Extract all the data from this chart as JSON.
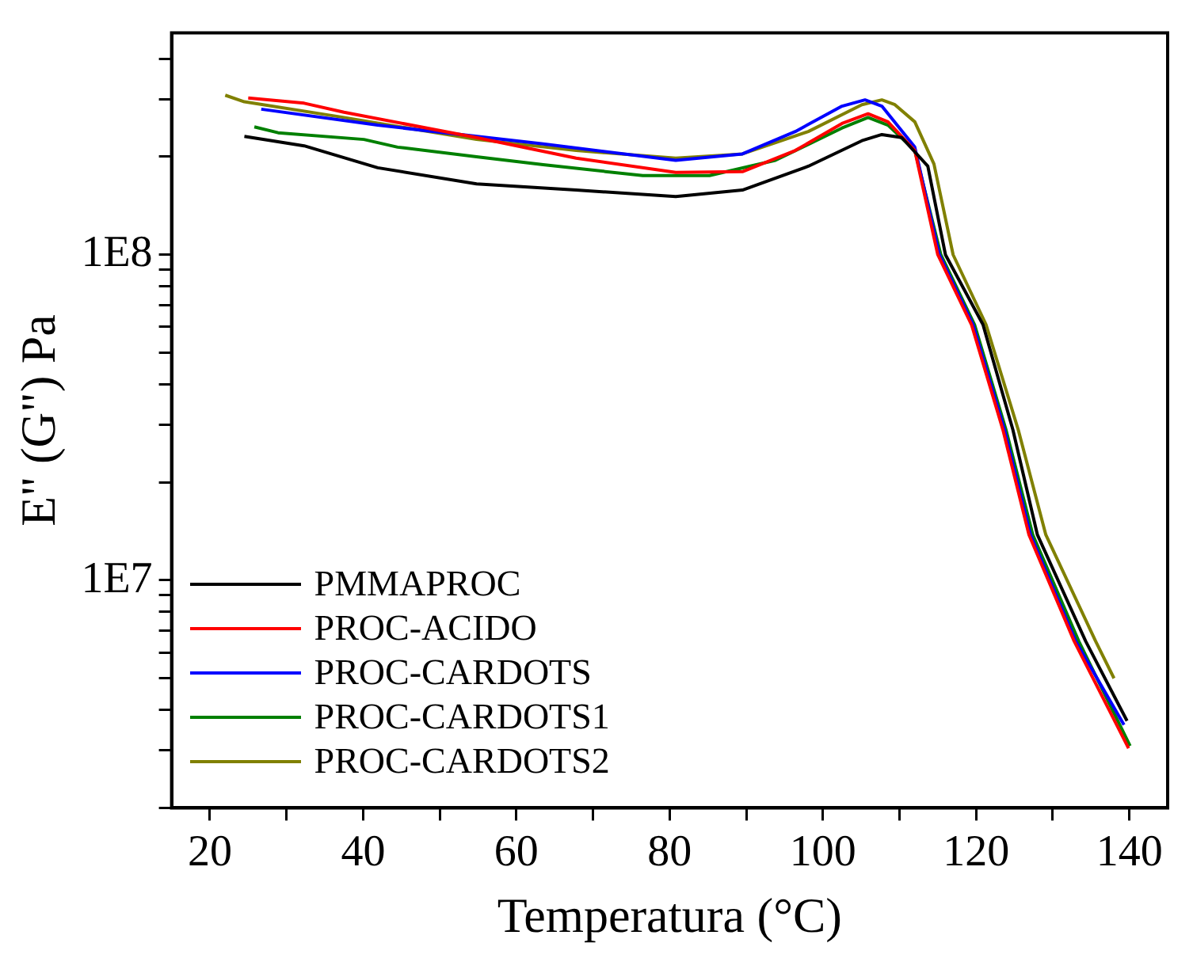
{
  "chart_data": {
    "type": "line",
    "xlabel": "Temperatura (°C)",
    "ylabel": "E\" (G\") Pa",
    "log": "y",
    "grid": false,
    "legend": "bottom left",
    "line_style": "solid",
    "marker": "none",
    "xlim": [
      15,
      145
    ],
    "xticks": [
      20,
      {
        "value": 30,
        "label": null
      },
      40,
      {
        "value": 50,
        "label": null
      },
      60,
      {
        "value": 70,
        "label": null
      },
      80,
      {
        "value": 90,
        "label": null
      },
      100,
      {
        "value": 110,
        "label": null
      },
      120,
      {
        "value": 130,
        "label": null
      },
      140
    ],
    "ylim": [
      2000000,
      480000000
    ],
    "yticks": [
      {
        "value": 2000000,
        "label": null
      },
      {
        "value": 3000000,
        "label": null
      },
      {
        "value": 4000000,
        "label": null
      },
      {
        "value": 5000000,
        "label": null
      },
      {
        "value": 6000000,
        "label": null
      },
      {
        "value": 7000000,
        "label": null
      },
      {
        "value": 8000000,
        "label": null
      },
      {
        "value": 9000000,
        "label": null
      },
      {
        "value": 10000000,
        "label": "1E7"
      },
      {
        "value": 20000000,
        "label": null
      },
      {
        "value": 30000000,
        "label": null
      },
      {
        "value": 40000000,
        "label": null
      },
      {
        "value": 50000000,
        "label": null
      },
      {
        "value": 60000000,
        "label": null
      },
      {
        "value": 70000000,
        "label": null
      },
      {
        "value": 80000000,
        "label": null
      },
      {
        "value": 90000000,
        "label": null
      },
      {
        "value": 100000000,
        "label": "1E8"
      },
      {
        "value": 200000000,
        "label": null
      },
      {
        "value": 300000000,
        "label": null
      },
      {
        "value": 400000000,
        "label": null
      }
    ],
    "series": [
      {
        "name": "PMMAPROC",
        "color": "#000000",
        "x": [
          24.5,
          32.3,
          41.9,
          54.8,
          67.8,
          80.8,
          89.5,
          98.1,
          105.1,
          107.7,
          110.3,
          113.7,
          116,
          120.9,
          124.8,
          128,
          134.3,
          139.7
        ],
        "values": [
          231000000,
          216000000,
          185000000,
          165000000,
          158000000,
          151000000,
          158000000,
          187000000,
          224000000,
          234000000,
          229000000,
          187000000,
          100000000,
          61000000,
          29000000,
          13800000,
          6500000,
          3700000
        ]
      },
      {
        "name": "PROC-ACIDO",
        "color": "#ff0000",
        "x": [
          25,
          32.3,
          37.5,
          54.8,
          67.8,
          80.8,
          89.5,
          96.4,
          102.5,
          105.9,
          108.5,
          112,
          115,
          119.4,
          123.5,
          126.9,
          132.8,
          139.9
        ],
        "values": [
          303000000,
          292000000,
          274000000,
          229000000,
          198000000,
          179000000,
          180000000,
          209000000,
          253000000,
          271000000,
          256000000,
          209000000,
          100000000,
          61000000,
          29000000,
          13800000,
          6500000,
          3050000
        ]
      },
      {
        "name": "PROC-CARDOTS",
        "color": "#0000ff",
        "x": [
          26.7,
          41.9,
          63.5,
          80.8,
          89.5,
          96.4,
          102.5,
          105.5,
          107.7,
          112,
          115.2,
          119.6,
          123.7,
          127.1,
          133,
          139.3
        ],
        "values": [
          280000000,
          250000000,
          219000000,
          195000000,
          204000000,
          239000000,
          286000000,
          299000000,
          286000000,
          214000000,
          100000000,
          61000000,
          29000000,
          13800000,
          6500000,
          3600000
        ]
      },
      {
        "name": "PROC-CARDOTS1",
        "color": "#008000",
        "x": [
          25.8,
          28.9,
          40.1,
          44.5,
          54.8,
          63.5,
          76.5,
          85.2,
          93.8,
          102.5,
          105.9,
          108.5,
          112,
          115.4,
          119.8,
          123.9,
          127.4,
          133.4,
          140.1
        ],
        "values": [
          247000000,
          237000000,
          226000000,
          214000000,
          200000000,
          189000000,
          175000000,
          175000000,
          195000000,
          245000000,
          264000000,
          250000000,
          209000000,
          100000000,
          61000000,
          29000000,
          13800000,
          6500000,
          3100000
        ]
      },
      {
        "name": "PROC-CARDOTS2",
        "color": "#808000",
        "x": [
          22,
          24.5,
          37.5,
          54.8,
          67.8,
          80.8,
          89.5,
          98.1,
          105.1,
          107.7,
          109.4,
          112,
          114.5,
          117,
          121.3,
          125.5,
          129.1,
          135.6,
          138
        ],
        "values": [
          309000000,
          295000000,
          264000000,
          226000000,
          209000000,
          198000000,
          204000000,
          239000000,
          289000000,
          299000000,
          289000000,
          256000000,
          190000000,
          100000000,
          61000000,
          29000000,
          13800000,
          6500000,
          5000000
        ]
      }
    ]
  }
}
